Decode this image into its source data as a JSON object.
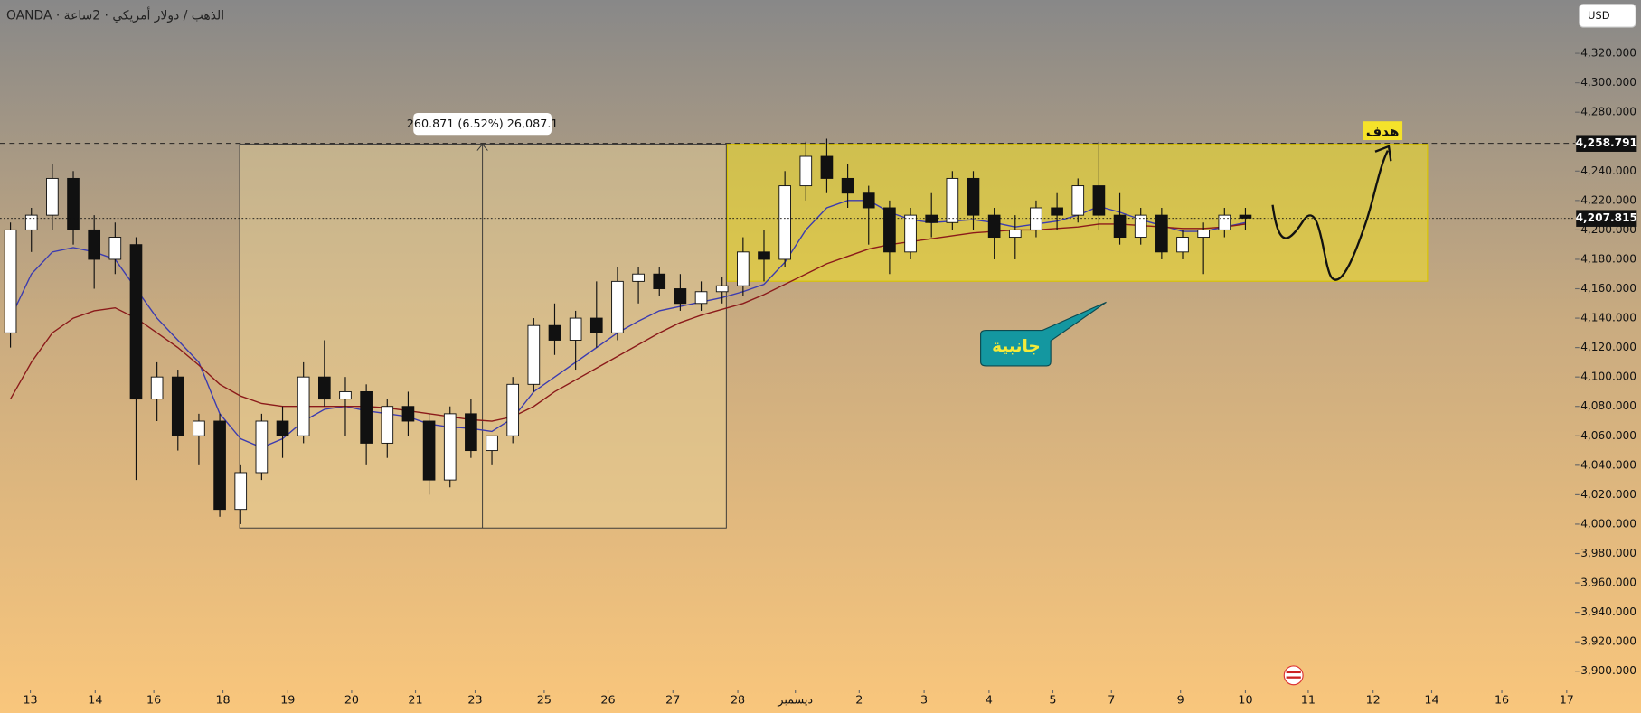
{
  "chart_data": {
    "type": "candlestick",
    "header": "OANDA · الذهب / دولار أمريكي · 2ساعة",
    "currency": "USD",
    "xlim": [
      0,
      75
    ],
    "ylim": [
      3887.2,
      4356.3
    ],
    "xticks": [
      {
        "value": 1.45,
        "label": "13"
      },
      {
        "value": 4.55,
        "label": "14"
      },
      {
        "value": 7.35,
        "label": "16"
      },
      {
        "value": 10.65,
        "label": "18"
      },
      {
        "value": 13.75,
        "label": "19"
      },
      {
        "value": 16.8,
        "label": "20"
      },
      {
        "value": 19.85,
        "label": "21"
      },
      {
        "value": 22.7,
        "label": "23"
      },
      {
        "value": 26,
        "label": "25"
      },
      {
        "value": 29.05,
        "label": "26"
      },
      {
        "value": 32.15,
        "label": "27"
      },
      {
        "value": 35.25,
        "label": "28"
      },
      {
        "value": 38,
        "label": "ديسمبر"
      },
      {
        "value": 41.05,
        "label": "2"
      },
      {
        "value": 44.15,
        "label": "3"
      },
      {
        "value": 47.25,
        "label": "4"
      },
      {
        "value": 50.3,
        "label": "5"
      },
      {
        "value": 53.1,
        "label": "7"
      },
      {
        "value": 56.4,
        "label": "9"
      },
      {
        "value": 59.5,
        "label": "10"
      },
      {
        "value": 62.5,
        "label": "11"
      },
      {
        "value": 65.6,
        "label": "12"
      },
      {
        "value": 68.4,
        "label": "14"
      },
      {
        "value": 71.75,
        "label": "16"
      },
      {
        "value": 74.85,
        "label": "17"
      }
    ],
    "yticks": [
      {
        "value": 3900,
        "label": "3,900.000"
      },
      {
        "value": 3920,
        "label": "3,920.000"
      },
      {
        "value": 3940,
        "label": "3,940.000"
      },
      {
        "value": 3960,
        "label": "3,960.000"
      },
      {
        "value": 3980,
        "label": "3,980.000"
      },
      {
        "value": 4000,
        "label": "4,000.000"
      },
      {
        "value": 4020,
        "label": "4,020.000"
      },
      {
        "value": 4040,
        "label": "4,040.000"
      },
      {
        "value": 4060,
        "label": "4,060.000"
      },
      {
        "value": 4080,
        "label": "4,080.000"
      },
      {
        "value": 4100,
        "label": "4,100.000"
      },
      {
        "value": 4120,
        "label": "4,120.000"
      },
      {
        "value": 4140,
        "label": "4,140.000"
      },
      {
        "value": 4160,
        "label": "4,160.000"
      },
      {
        "value": 4180,
        "label": "4,180.000"
      },
      {
        "value": 4200,
        "label": "4,200.000"
      },
      {
        "value": 4220,
        "label": "4,220.000"
      },
      {
        "value": 4240,
        "label": "4,240.000"
      },
      {
        "value": 4260,
        "label": "4,260.000"
      },
      {
        "value": 4280,
        "label": "4,280.000"
      },
      {
        "value": 4300,
        "label": "4,300.000"
      },
      {
        "value": 4320,
        "label": "4,320.000"
      }
    ],
    "x": [
      0.5,
      1.5,
      2.5,
      3.5,
      4.5,
      5.5,
      6.5,
      7.5,
      8.5,
      9.5,
      10.5,
      11.5,
      12.5,
      13.5,
      14.5,
      15.5,
      16.5,
      17.5,
      18.5,
      19.5,
      20.5,
      21.5,
      22.5,
      23.5,
      24.5,
      25.5,
      26.5,
      27.5,
      28.5,
      29.5,
      30.5,
      31.5,
      32.5,
      33.5,
      34.5,
      35.5,
      36.5,
      37.5,
      38.5,
      39.5,
      40.5,
      41.5,
      42.5,
      43.5,
      44.5,
      45.5,
      46.5,
      47.5,
      48.5,
      49.5,
      50.5,
      51.5,
      52.5,
      53.5,
      54.5,
      55.5,
      56.5,
      57.5,
      58.5,
      59.5
    ],
    "open": [
      4130,
      4200,
      4210,
      4235,
      4200,
      4180,
      4190,
      4085,
      4100,
      4060,
      4070,
      4010,
      4035,
      4070,
      4060,
      4100,
      4085,
      4090,
      4055,
      4080,
      4070,
      4030,
      4075,
      4050,
      4060,
      4095,
      4135,
      4125,
      4140,
      4130,
      4165,
      4170,
      4160,
      4150,
      4158,
      4162,
      4185,
      4180,
      4230,
      4250,
      4235,
      4225,
      4215,
      4185,
      4210,
      4205,
      4235,
      4210,
      4195,
      4200,
      4215,
      4210,
      4230,
      4210,
      4195,
      4210,
      4185,
      4195,
      4200,
      4210
    ],
    "high": [
      4205,
      4215,
      4245,
      4240,
      4210,
      4205,
      4195,
      4110,
      4105,
      4075,
      4075,
      4040,
      4075,
      4080,
      4110,
      4125,
      4100,
      4095,
      4085,
      4090,
      4075,
      4080,
      4085,
      4060,
      4100,
      4140,
      4150,
      4145,
      4165,
      4175,
      4175,
      4175,
      4170,
      4165,
      4168,
      4195,
      4200,
      4240,
      4260,
      4262,
      4245,
      4230,
      4220,
      4215,
      4225,
      4240,
      4240,
      4215,
      4210,
      4220,
      4225,
      4235,
      4260,
      4225,
      4215,
      4215,
      4200,
      4205,
      4215,
      4215
    ],
    "low": [
      4120,
      4185,
      4200,
      4190,
      4160,
      4170,
      4030,
      4070,
      4050,
      4040,
      4005,
      4000,
      4030,
      4045,
      4055,
      4080,
      4060,
      4040,
      4045,
      4060,
      4020,
      4025,
      4045,
      4040,
      4055,
      4090,
      4115,
      4105,
      4120,
      4125,
      4150,
      4155,
      4145,
      4145,
      4150,
      4155,
      4165,
      4175,
      4220,
      4225,
      4215,
      4190,
      4170,
      4180,
      4195,
      4200,
      4200,
      4180,
      4180,
      4195,
      4200,
      4205,
      4200,
      4190,
      4190,
      4180,
      4180,
      4170,
      4195,
      4200
    ],
    "close": [
      4200,
      4210,
      4235,
      4200,
      4180,
      4195,
      4085,
      4100,
      4060,
      4070,
      4010,
      4035,
      4070,
      4060,
      4100,
      4085,
      4090,
      4055,
      4080,
      4070,
      4030,
      4075,
      4050,
      4060,
      4095,
      4135,
      4125,
      4140,
      4130,
      4165,
      4170,
      4160,
      4150,
      4158,
      4162,
      4185,
      4180,
      4230,
      4250,
      4235,
      4225,
      4215,
      4185,
      4210,
      4205,
      4235,
      4210,
      4195,
      4200,
      4215,
      4210,
      4230,
      4210,
      4195,
      4210,
      4185,
      4195,
      4200,
      4210,
      4208
    ],
    "lines": [
      {
        "color": "#3b3bb0",
        "values": [
          4140,
          4170,
          4185,
          4188,
          4185,
          4180,
          4160,
          4140,
          4125,
          4110,
          4075,
          4058,
          4052,
          4058,
          4070,
          4078,
          4080,
          4077,
          4075,
          4073,
          4068,
          4066,
          4065,
          4063,
          4072,
          4090,
          4100,
          4110,
          4120,
          4130,
          4138,
          4145,
          4148,
          4151,
          4154,
          4158,
          4163,
          4178,
          4200,
          4215,
          4220,
          4220,
          4212,
          4207,
          4205,
          4206,
          4207,
          4205,
          4202,
          4204,
          4206,
          4210,
          4216,
          4212,
          4207,
          4203,
          4199,
          4199,
          4202,
          4205
        ]
      },
      {
        "color": "#8b1a1a",
        "values": [
          4085,
          4110,
          4130,
          4140,
          4145,
          4147,
          4140,
          4130,
          4120,
          4108,
          4095,
          4087,
          4082,
          4080,
          4080,
          4080,
          4080,
          4080,
          4079,
          4077,
          4075,
          4073,
          4071,
          4070,
          4073,
          4080,
          4090,
          4098,
          4106,
          4114,
          4122,
          4130,
          4137,
          4142,
          4146,
          4150,
          4156,
          4163,
          4170,
          4177,
          4182,
          4187,
          4190,
          4192,
          4194,
          4196,
          4198,
          4199,
          4200,
          4200,
          4201,
          4202,
          4204,
          4204,
          4203,
          4202,
          4201,
          4201,
          4202,
          4204
        ]
      }
    ],
    "price_lines": [
      {
        "value": 4258.791,
        "label": "4,258.791",
        "style": "dashed"
      },
      {
        "value": 4207.815,
        "label": "4,207.815",
        "style": "dotted"
      }
    ],
    "measure_label": "260.871 (6.52%) 26,087.1",
    "target_label": "هدف",
    "range_label": "جانبية"
  }
}
